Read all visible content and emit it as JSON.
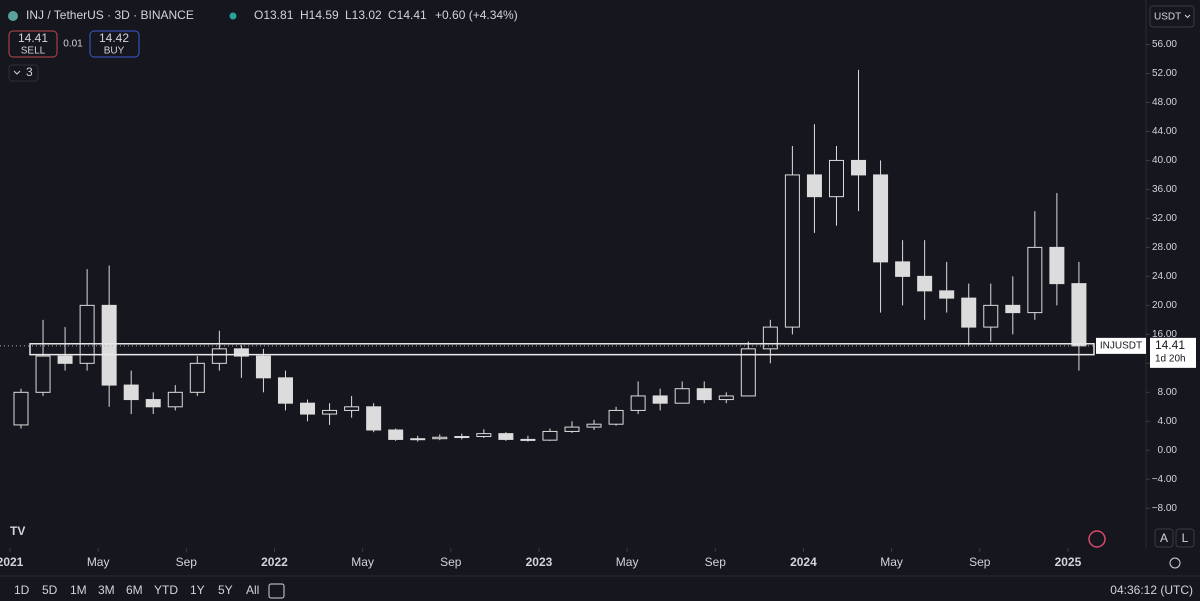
{
  "header": {
    "symbol": "INJ / TetherUS · 3D · BINANCE",
    "open": "O13.81",
    "high": "H14.59",
    "low": "L13.02",
    "close": "C14.41",
    "change": "+0.60 (+4.34%)",
    "sell_price": "14.41",
    "sell": "SELL",
    "spread": "0.01",
    "buy_price": "14.42",
    "buy": "BUY",
    "indicators": "3",
    "currency": "USDT"
  },
  "toolbar": {
    "ranges": [
      "1D",
      "5D",
      "1M",
      "3M",
      "6M",
      "YTD",
      "1Y",
      "5Y",
      "All"
    ],
    "clock": "04:36:12 (UTC)",
    "auto": "A",
    "log": "L"
  },
  "chart_data": {
    "type": "candlestick",
    "x": [
      "2021-01",
      "2021-02",
      "2021-03",
      "2021-04",
      "2021-05",
      "2021-06",
      "2021-07",
      "2021-08",
      "2021-09",
      "2021-10",
      "2021-11",
      "2021-12",
      "2022-01",
      "2022-02",
      "2022-03",
      "2022-04",
      "2022-05",
      "2022-06",
      "2022-07",
      "2022-08",
      "2022-09",
      "2022-10",
      "2022-11",
      "2022-12",
      "2023-01",
      "2023-02",
      "2023-03",
      "2023-04",
      "2023-05",
      "2023-06",
      "2023-07",
      "2023-08",
      "2023-09",
      "2023-10",
      "2023-11",
      "2023-12",
      "2024-01",
      "2024-02",
      "2024-03",
      "2024-04",
      "2024-05",
      "2024-06",
      "2024-07",
      "2024-08",
      "2024-09",
      "2024-10",
      "2024-11",
      "2024-12",
      "2025-01"
    ],
    "series": [
      {
        "name": "INJUSDT",
        "color": "#dcdcdc",
        "open": [
          3.5,
          8,
          13,
          12,
          20,
          9,
          7,
          6,
          8,
          12,
          14,
          13,
          10,
          6.5,
          5,
          5.5,
          6,
          2.8,
          1.5,
          1.6,
          1.8,
          1.9,
          2.3,
          1.5,
          1.4,
          2.6,
          3.2,
          3.6,
          5.5,
          7.5,
          6.5,
          8.5,
          7,
          7.5,
          14,
          17,
          38,
          35,
          40,
          38,
          26,
          24,
          22,
          21,
          17,
          20,
          19,
          28,
          23
        ],
        "high": [
          8.5,
          18,
          17,
          25,
          25.5,
          11,
          8,
          9,
          13,
          16.5,
          14.5,
          14,
          11,
          7,
          6.5,
          7.5,
          6.5,
          3,
          2,
          2.2,
          2.3,
          2.9,
          2.5,
          2,
          3,
          4,
          4.2,
          6,
          9.5,
          8.5,
          9.5,
          9.5,
          8,
          15,
          18,
          42,
          45,
          42,
          52.5,
          40,
          29,
          29,
          26,
          23,
          23,
          24,
          33,
          35.5,
          26
        ],
        "low": [
          3,
          7.5,
          11,
          11,
          6,
          5,
          5,
          5.5,
          7.5,
          11,
          10,
          8,
          5.5,
          4,
          3.5,
          4.5,
          2.5,
          1.3,
          1.2,
          1.4,
          1.5,
          1.7,
          1.3,
          1.2,
          1.3,
          2.4,
          2.8,
          3.4,
          5,
          5.5,
          6.5,
          6.5,
          6.5,
          7.5,
          12,
          16,
          30,
          31,
          33,
          19,
          20,
          18,
          19,
          14.5,
          15,
          16,
          18,
          20,
          11
        ],
        "close": [
          8,
          13,
          12,
          20,
          9,
          7,
          6,
          8,
          12,
          14,
          13,
          10,
          6.5,
          5,
          5.5,
          6,
          2.8,
          1.5,
          1.6,
          1.8,
          1.9,
          2.3,
          1.5,
          1.4,
          2.6,
          3.2,
          3.6,
          5.5,
          7.5,
          6.5,
          8.5,
          7,
          7.5,
          14,
          17,
          38,
          35,
          40,
          38,
          26,
          24,
          22,
          21,
          17,
          20,
          19,
          28,
          23,
          14.41
        ]
      }
    ],
    "last_price": 14.41,
    "countdown": "1d 20h",
    "ylim": [
      -11,
      58
    ],
    "yticks": [
      {
        "value": -8,
        "label": "−8.00"
      },
      {
        "value": -4,
        "label": "−4.00"
      },
      {
        "value": 0,
        "label": "0.00"
      },
      {
        "value": 4,
        "label": "4.00"
      },
      {
        "value": 8,
        "label": "8.00"
      },
      {
        "value": 12,
        "label": "12.00"
      },
      {
        "value": 16,
        "label": "16.00"
      },
      {
        "value": 20,
        "label": "20.00"
      },
      {
        "value": 24,
        "label": "24.00"
      },
      {
        "value": 28,
        "label": "28.00"
      },
      {
        "value": 32,
        "label": "32.00"
      },
      {
        "value": 36,
        "label": "36.00"
      },
      {
        "value": 40,
        "label": "40.00"
      },
      {
        "value": 44,
        "label": "44.00"
      },
      {
        "value": 48,
        "label": "48.00"
      },
      {
        "value": 52,
        "label": "52.00"
      },
      {
        "value": 56,
        "label": "56.00"
      }
    ],
    "xticks": [
      {
        "value": "2021-01",
        "label": "2021"
      },
      {
        "value": "2021-05",
        "label": "May"
      },
      {
        "value": "2021-09",
        "label": "Sep"
      },
      {
        "value": "2022-01",
        "label": "2022"
      },
      {
        "value": "2022-05",
        "label": "May"
      },
      {
        "value": "2022-09",
        "label": "Sep"
      },
      {
        "value": "2023-01",
        "label": "2023"
      },
      {
        "value": "2023-05",
        "label": "May"
      },
      {
        "value": "2023-09",
        "label": "Sep"
      },
      {
        "value": "2024-01",
        "label": "2024"
      },
      {
        "value": "2024-05",
        "label": "May"
      },
      {
        "value": "2024-09",
        "label": "Sep"
      },
      {
        "value": "2025-01",
        "label": "2025"
      }
    ]
  }
}
